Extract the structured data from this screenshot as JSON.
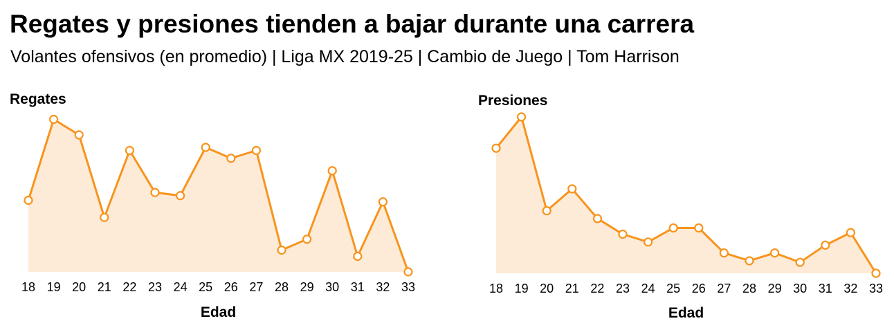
{
  "title": "Regates y presiones tienden a bajar durante una carrera",
  "subtitle": "Volantes ofensivos (en promedio) | Liga MX 2019-25 | Cambio de Juego | Tom Harrison",
  "colors": {
    "line": "#F7941D",
    "fill": "#FDEBD7",
    "marker_fill": "#ffffff"
  },
  "chart_data": [
    {
      "type": "area",
      "title": "Regates",
      "xlabel": "Edad",
      "ylabel": "",
      "grid": false,
      "x": [
        18,
        19,
        20,
        21,
        22,
        23,
        24,
        25,
        26,
        27,
        28,
        29,
        30,
        31,
        32,
        33
      ],
      "values": [
        0.46,
        0.98,
        0.88,
        0.35,
        0.78,
        0.51,
        0.49,
        0.8,
        0.73,
        0.78,
        0.14,
        0.21,
        0.65,
        0.1,
        0.45,
        0.0
      ],
      "ylim": [
        0,
        1
      ]
    },
    {
      "type": "area",
      "title": "Presiones",
      "xlabel": "Edad",
      "ylabel": "",
      "grid": false,
      "x": [
        18,
        19,
        20,
        21,
        22,
        23,
        24,
        25,
        26,
        27,
        28,
        29,
        30,
        31,
        32,
        33
      ],
      "values": [
        0.8,
        1.0,
        0.4,
        0.54,
        0.35,
        0.25,
        0.2,
        0.29,
        0.29,
        0.13,
        0.08,
        0.13,
        0.07,
        0.18,
        0.26,
        0.0
      ],
      "ylim": [
        0,
        1
      ]
    }
  ]
}
